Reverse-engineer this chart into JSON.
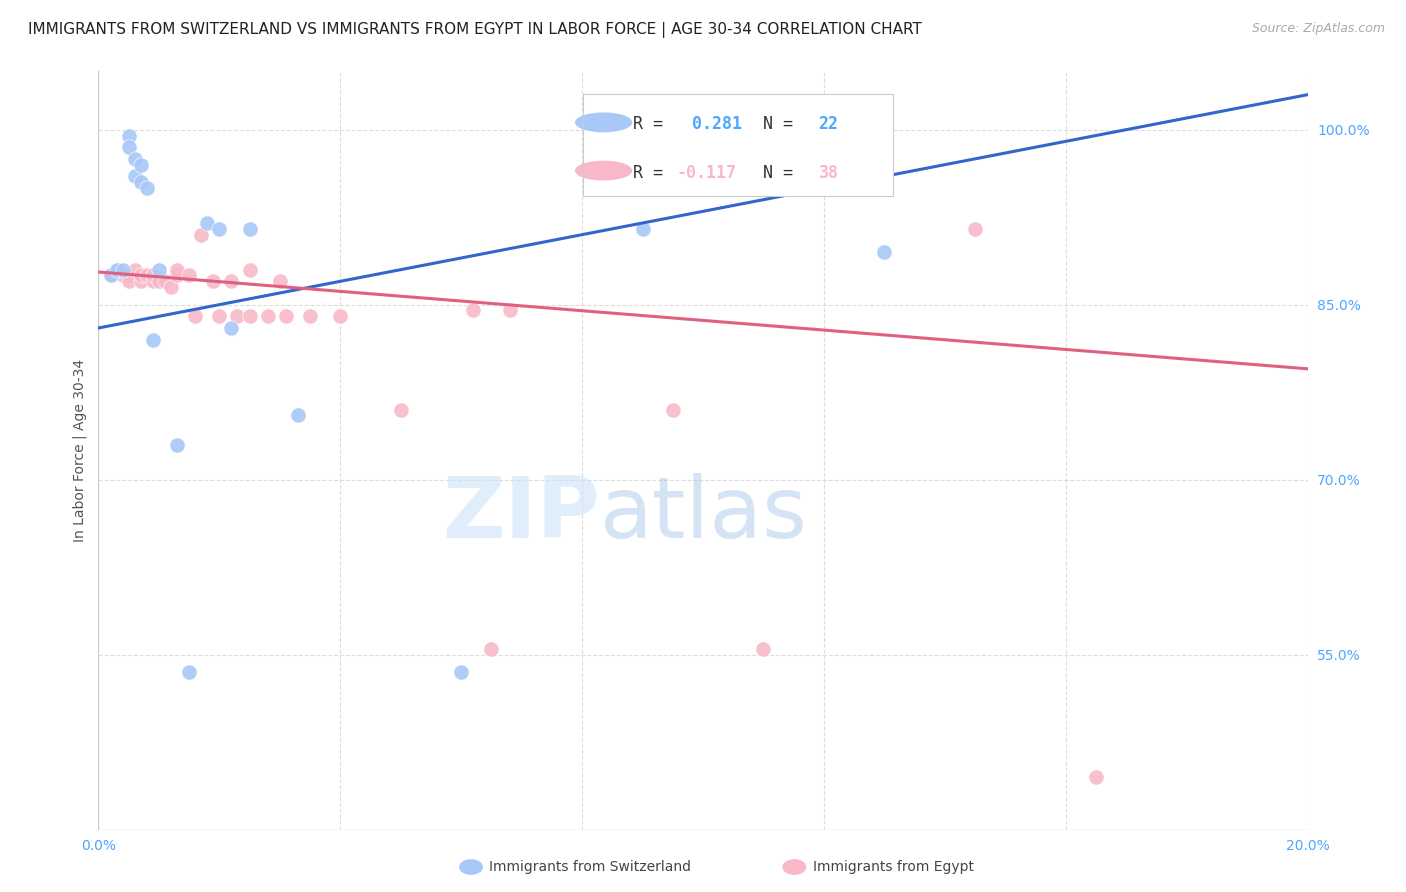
{
  "title": "IMMIGRANTS FROM SWITZERLAND VS IMMIGRANTS FROM EGYPT IN LABOR FORCE | AGE 30-34 CORRELATION CHART",
  "source": "Source: ZipAtlas.com",
  "ylabel": "In Labor Force | Age 30-34",
  "xlim": [
    0.0,
    0.2
  ],
  "ylim": [
    0.4,
    1.05
  ],
  "yticks": [
    0.55,
    0.7,
    0.85,
    1.0
  ],
  "yticklabels": [
    "55.0%",
    "70.0%",
    "85.0%",
    "100.0%"
  ],
  "xtick_positions": [
    0.0,
    0.2
  ],
  "xticklabels": [
    "0.0%",
    "20.0%"
  ],
  "tick_color": "#4da6ff",
  "legend_R1": "R =  0.281",
  "legend_N1": "N = 22",
  "legend_R2": "R = -0.117",
  "legend_N2": "N = 38",
  "color_swiss": "#a8c8f8",
  "color_egypt": "#f8b8c8",
  "line_swiss": "#3366cc",
  "line_egypt": "#e06080",
  "scatter_size": 120,
  "swiss_x": [
    0.002,
    0.003,
    0.004,
    0.005,
    0.005,
    0.006,
    0.006,
    0.007,
    0.007,
    0.008,
    0.009,
    0.01,
    0.013,
    0.015,
    0.018,
    0.02,
    0.022,
    0.025,
    0.033,
    0.06,
    0.09,
    0.13
  ],
  "swiss_y": [
    0.875,
    0.88,
    0.88,
    0.995,
    0.985,
    0.975,
    0.96,
    0.97,
    0.955,
    0.95,
    0.82,
    0.88,
    0.73,
    0.535,
    0.92,
    0.915,
    0.83,
    0.915,
    0.755,
    0.535,
    0.915,
    0.895
  ],
  "egypt_x": [
    0.002,
    0.003,
    0.004,
    0.005,
    0.005,
    0.006,
    0.007,
    0.007,
    0.008,
    0.009,
    0.009,
    0.01,
    0.011,
    0.012,
    0.013,
    0.013,
    0.015,
    0.016,
    0.017,
    0.019,
    0.02,
    0.022,
    0.023,
    0.025,
    0.025,
    0.028,
    0.03,
    0.031,
    0.035,
    0.04,
    0.05,
    0.062,
    0.065,
    0.068,
    0.095,
    0.11,
    0.145,
    0.165
  ],
  "egypt_y": [
    0.875,
    0.88,
    0.875,
    0.875,
    0.87,
    0.88,
    0.87,
    0.875,
    0.875,
    0.87,
    0.875,
    0.87,
    0.87,
    0.865,
    0.875,
    0.88,
    0.875,
    0.84,
    0.91,
    0.87,
    0.84,
    0.87,
    0.84,
    0.84,
    0.88,
    0.84,
    0.87,
    0.84,
    0.84,
    0.84,
    0.76,
    0.845,
    0.555,
    0.845,
    0.76,
    0.555,
    0.915,
    0.445
  ],
  "watermark_zip": "ZIP",
  "watermark_atlas": "atlas",
  "background_color": "#ffffff",
  "grid_color": "#dddddd",
  "swiss_line_x0": 0.0,
  "swiss_line_y0": 0.83,
  "swiss_line_x1": 0.2,
  "swiss_line_y1": 1.03,
  "egypt_line_x0": 0.0,
  "egypt_line_y0": 0.878,
  "egypt_line_x1": 0.2,
  "egypt_line_y1": 0.795
}
